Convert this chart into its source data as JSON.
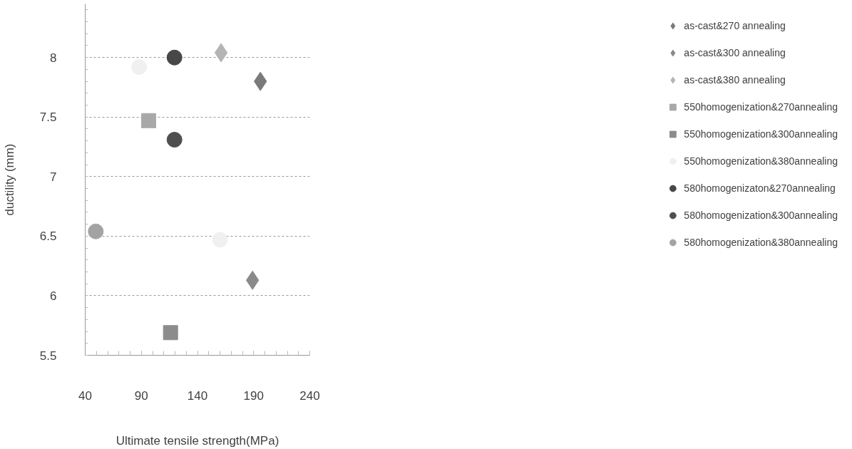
{
  "chart_data": {
    "type": "scatter",
    "xlabel": "Ultimate tensile strength(MPa)",
    "ylabel": "ductility (mm)",
    "xlim": [
      40,
      240
    ],
    "xticks": [
      40,
      90,
      140,
      190,
      240
    ],
    "ylim": [
      5.5,
      8.45
    ],
    "yticks": [
      5.5,
      6,
      6.5,
      7,
      7.5,
      8
    ],
    "grid": "y",
    "legend": "right",
    "series": [
      {
        "name": "as-cast&270 annealing",
        "color": "#7a7a7a",
        "marker": "diamond",
        "x": [
          196
        ],
        "values": [
          7.8
        ]
      },
      {
        "name": "as-cast&300 annealing",
        "color": "#8a8a8a",
        "marker": "diamond",
        "x": [
          189
        ],
        "values": [
          6.13
        ]
      },
      {
        "name": "as-cast&380 annealing",
        "color": "#b4b4b4",
        "marker": "diamond",
        "x": [
          161
        ],
        "values": [
          8.04
        ]
      },
      {
        "name": "550homogenization&270annealing",
        "color": "#a8a8a8",
        "marker": "square",
        "x": [
          96.5
        ],
        "values": [
          7.47
        ]
      },
      {
        "name": "550homogenization&300annealing",
        "color": "#8c8c8c",
        "marker": "square",
        "x": [
          116
        ],
        "values": [
          5.69
        ]
      },
      {
        "name": "550homogenization&380annealing",
        "color": "#f0f0f0",
        "marker": "circle",
        "x": [
          88,
          160
        ],
        "values": [
          7.92,
          6.47
        ]
      },
      {
        "name": "580homogenizaton&270annealing",
        "color": "#474747",
        "marker": "circle",
        "x": [
          119.5
        ],
        "values": [
          8.0
        ]
      },
      {
        "name": "580homogenization&300annealing",
        "color": "#4f4f4f",
        "marker": "circle",
        "x": [
          119.5
        ],
        "values": [
          7.31
        ]
      },
      {
        "name": "580homogenization&380annealing",
        "color": "#a3a3a3",
        "marker": "circle",
        "x": [
          49.4
        ],
        "values": [
          6.54
        ]
      }
    ]
  }
}
